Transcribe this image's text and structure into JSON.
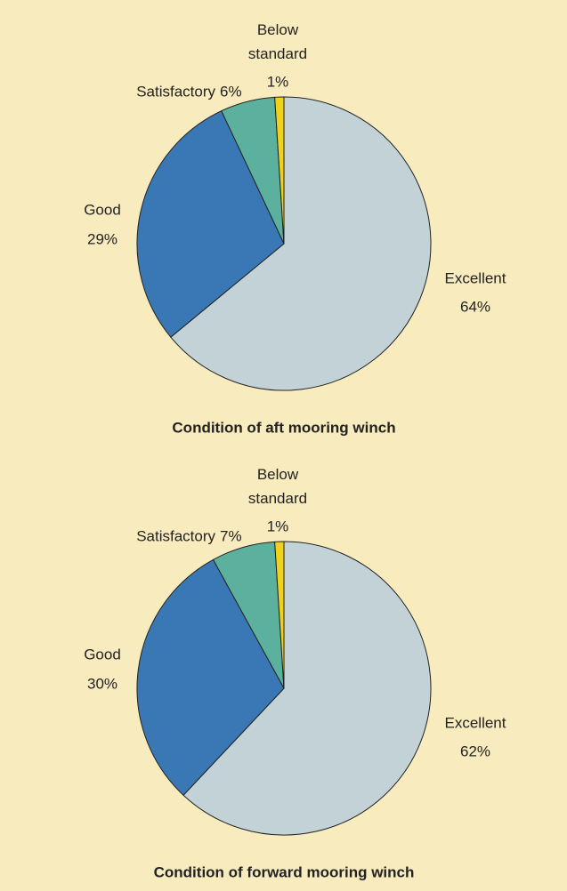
{
  "chart_data": [
    {
      "type": "pie",
      "title": "Condition of aft mooring winch",
      "categories": [
        "Excellent",
        "Good",
        "Satisfactory",
        "Below standard"
      ],
      "values": [
        64,
        29,
        6,
        1
      ],
      "value_labels": [
        "64%",
        "29%",
        "6%",
        "1%"
      ],
      "colors": [
        "#c2d2d6",
        "#3a78b5",
        "#5bb09e",
        "#f0d21b"
      ]
    },
    {
      "type": "pie",
      "title": "Condition of forward mooring winch",
      "categories": [
        "Excellent",
        "Good",
        "Satisfactory",
        "Below standard"
      ],
      "values": [
        62,
        30,
        7,
        1
      ],
      "value_labels": [
        "62%",
        "30%",
        "7%",
        "1%"
      ],
      "colors": [
        "#c2d2d6",
        "#3a78b5",
        "#5bb09e",
        "#f0d21b"
      ]
    }
  ]
}
